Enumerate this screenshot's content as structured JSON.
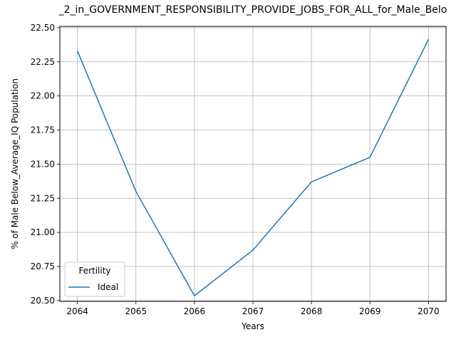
{
  "chart_data": {
    "type": "line",
    "title": "_2_in_GOVERNMENT_RESPONSIBILITY_PROVIDE_JOBS_FOR_ALL_for_Male_Belo",
    "xlabel": "Years",
    "ylabel": "% of Male Below_Average_IQ Population",
    "x": [
      2064,
      2065,
      2066,
      2067,
      2068,
      2069,
      2070
    ],
    "xlim": [
      2063.7,
      2070.3
    ],
    "ylim": [
      20.494,
      22.51
    ],
    "xticks": [
      "2064",
      "2065",
      "2066",
      "2067",
      "2068",
      "2069",
      "2070"
    ],
    "yticks": [
      "20.50",
      "20.75",
      "21.00",
      "21.25",
      "21.50",
      "21.75",
      "22.00",
      "22.25",
      "22.50"
    ],
    "grid": true,
    "legend": {
      "title": "Fertility",
      "position": "lower-left"
    },
    "series": [
      {
        "name": "Ideal",
        "color": "#1f77b4",
        "values": [
          22.33,
          21.3,
          20.535,
          20.87,
          21.37,
          21.55,
          22.415
        ]
      }
    ]
  }
}
